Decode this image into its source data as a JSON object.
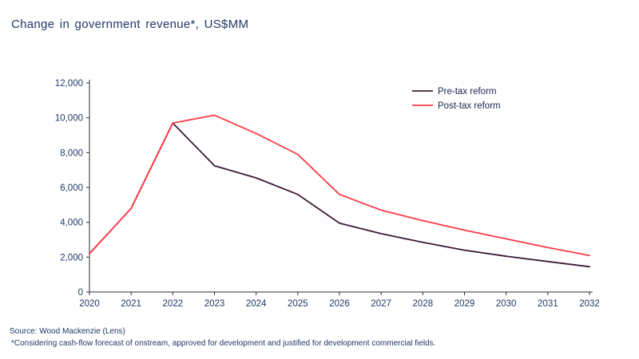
{
  "page": {
    "title": "Change in government revenue*,  US$MM"
  },
  "source": {
    "line1": "Source: Wood Mackenzie (Lens)",
    "line2": "*Considering cash-flow forecast of onstream, approved for development and justified for development commercial fields."
  },
  "colors": {
    "text_navy": "#1f3864",
    "axis": "#2b2b3a",
    "pre_tax_line": "#3d1b33",
    "post_tax_line": "#ff3b47",
    "background": "#ffffff"
  },
  "chart_data": {
    "type": "line",
    "title": "Change in government revenue*, US$MM",
    "xlabel": "",
    "ylabel": "",
    "x": [
      2020,
      2021,
      2022,
      2023,
      2024,
      2025,
      2026,
      2027,
      2028,
      2029,
      2030,
      2031,
      2032
    ],
    "series": [
      {
        "name": "Pre-tax reform",
        "color": "#3d1b33",
        "values": [
          2200,
          4800,
          9700,
          7250,
          6550,
          5600,
          3950,
          3350,
          2850,
          2400,
          2050,
          1750,
          1450
        ]
      },
      {
        "name": "Post-tax reform",
        "color": "#ff3b47",
        "values": [
          2200,
          4800,
          9700,
          10150,
          9100,
          7900,
          5600,
          4700,
          4100,
          3550,
          3050,
          2550,
          2100
        ]
      }
    ],
    "ylim": [
      0,
      12000
    ],
    "ytick_step": 2000,
    "grid": false,
    "legend_position": "top-right-inside"
  }
}
